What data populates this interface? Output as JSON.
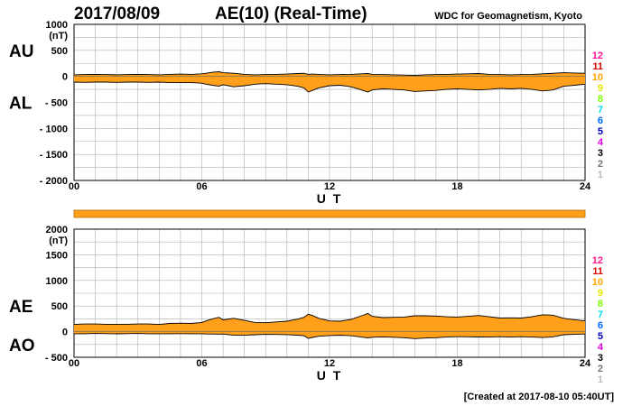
{
  "header": {
    "date": "2017/08/09",
    "title": "AE(10) (Real-Time)",
    "source": "WDC for Geomagnetism, Kyoto"
  },
  "footer": {
    "created": "[Created at 2017-08-10 05:40UT]"
  },
  "colors": {
    "fill": "#ff9f1a",
    "outline": "#000000",
    "grid": "#b0b0b0",
    "station_counts": [
      "#ff1493",
      "#dd0000",
      "#ffa500",
      "#e6e600",
      "#7fff00",
      "#00ddee",
      "#0066ff",
      "#0000bb",
      "#dd00dd",
      "#000000",
      "#777777",
      "#bbbbbb"
    ]
  },
  "chart_data": [
    {
      "type": "area",
      "panel": "AU/AL",
      "yunit": "(nT)",
      "xlabel": "U T",
      "xlim": [
        0,
        24
      ],
      "ylim": [
        -2000,
        1000
      ],
      "xticks": [
        "00",
        "06",
        "12",
        "18",
        "24"
      ],
      "yticks": [
        "1000",
        "500",
        "0",
        "- 500",
        "- 1000",
        "- 1500",
        "- 2000"
      ],
      "ytick_values": [
        1000,
        500,
        0,
        -500,
        -1000,
        -1500,
        -2000
      ],
      "side_labels": [
        "AU",
        "AL"
      ],
      "station_labels": [
        "12",
        "11",
        "10",
        "9",
        "8",
        "7",
        "6",
        "5",
        "4",
        "3",
        "2",
        "1"
      ],
      "x": [
        0,
        0.5,
        1,
        1.5,
        2,
        2.5,
        3,
        3.5,
        4,
        4.5,
        5,
        5.5,
        6,
        6.2,
        6.5,
        6.8,
        7,
        7.5,
        8,
        8.5,
        9,
        9.5,
        10,
        10.5,
        10.8,
        11,
        11.2,
        11.5,
        12,
        12.5,
        13,
        13.5,
        13.8,
        14,
        14.5,
        15,
        15.5,
        16,
        16.5,
        17,
        17.5,
        18,
        18.5,
        19,
        19.5,
        20,
        20.5,
        21,
        21.5,
        22,
        22.3,
        22.5,
        23,
        23.5,
        24
      ],
      "series": [
        {
          "name": "AU",
          "values": [
            30,
            35,
            40,
            35,
            30,
            35,
            40,
            35,
            30,
            40,
            45,
            40,
            50,
            60,
            80,
            90,
            70,
            60,
            40,
            30,
            35,
            40,
            45,
            55,
            60,
            40,
            45,
            40,
            30,
            35,
            40,
            50,
            55,
            40,
            35,
            30,
            25,
            20,
            30,
            35,
            40,
            45,
            50,
            55,
            40,
            35,
            30,
            35,
            40,
            50,
            55,
            60,
            70,
            65,
            60
          ]
        },
        {
          "name": "AL",
          "values": [
            -110,
            -115,
            -110,
            -110,
            -115,
            -110,
            -110,
            -115,
            -110,
            -120,
            -120,
            -120,
            -130,
            -150,
            -170,
            -190,
            -160,
            -200,
            -180,
            -150,
            -140,
            -150,
            -160,
            -190,
            -220,
            -300,
            -270,
            -220,
            -180,
            -170,
            -200,
            -260,
            -300,
            -260,
            -240,
            -250,
            -260,
            -290,
            -280,
            -270,
            -250,
            -240,
            -250,
            -260,
            -250,
            -230,
            -240,
            -230,
            -250,
            -280,
            -270,
            -260,
            -190,
            -170,
            -150
          ]
        }
      ]
    },
    {
      "type": "area",
      "panel": "AE/AO",
      "yunit": "(nT)",
      "xlabel": "U T",
      "xlim": [
        0,
        24
      ],
      "ylim": [
        -500,
        2000
      ],
      "xticks": [
        "00",
        "06",
        "12",
        "18",
        "24"
      ],
      "yticks": [
        "2000",
        "1500",
        "1000",
        "500",
        "0",
        "- 500"
      ],
      "ytick_values": [
        2000,
        1500,
        1000,
        500,
        0,
        -500
      ],
      "side_labels": [
        "AE",
        "AO"
      ],
      "station_labels": [
        "12",
        "11",
        "10",
        "9",
        "8",
        "7",
        "6",
        "5",
        "4",
        "3",
        "2",
        "1"
      ],
      "x": [
        0,
        0.5,
        1,
        1.5,
        2,
        2.5,
        3,
        3.5,
        4,
        4.5,
        5,
        5.5,
        6,
        6.2,
        6.5,
        6.8,
        7,
        7.5,
        8,
        8.5,
        9,
        9.5,
        10,
        10.5,
        10.8,
        11,
        11.2,
        11.5,
        12,
        12.5,
        13,
        13.5,
        13.8,
        14,
        14.5,
        15,
        15.5,
        16,
        16.5,
        17,
        17.5,
        18,
        18.5,
        19,
        19.5,
        20,
        20.5,
        21,
        21.5,
        22,
        22.3,
        22.5,
        23,
        23.5,
        24
      ],
      "series": [
        {
          "name": "AE",
          "values": [
            140,
            150,
            150,
            145,
            145,
            145,
            150,
            150,
            140,
            160,
            165,
            160,
            180,
            210,
            250,
            280,
            230,
            260,
            220,
            180,
            175,
            190,
            205,
            245,
            280,
            340,
            315,
            260,
            210,
            205,
            240,
            310,
            355,
            300,
            275,
            280,
            285,
            310,
            310,
            305,
            290,
            285,
            300,
            315,
            290,
            265,
            270,
            265,
            290,
            330,
            325,
            320,
            260,
            235,
            210
          ]
        },
        {
          "name": "AO",
          "values": [
            -40,
            -40,
            -35,
            -38,
            -43,
            -38,
            -35,
            -40,
            -40,
            -40,
            -38,
            -40,
            -40,
            -45,
            -45,
            -50,
            -45,
            -70,
            -70,
            -60,
            -52,
            -55,
            -58,
            -68,
            -80,
            -130,
            -112,
            -90,
            -75,
            -68,
            -80,
            -105,
            -122,
            -110,
            -102,
            -110,
            -118,
            -135,
            -125,
            -118,
            -105,
            -98,
            -100,
            -103,
            -105,
            -98,
            -105,
            -98,
            -105,
            -115,
            -108,
            -100,
            -60,
            -52,
            -45
          ]
        }
      ]
    }
  ]
}
